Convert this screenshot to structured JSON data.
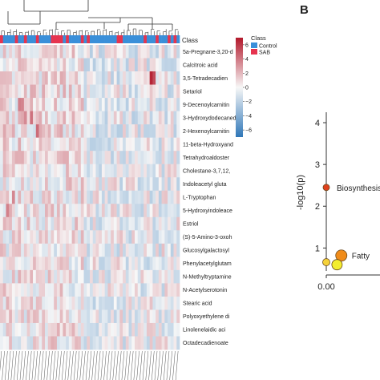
{
  "panel_b_letter": "B",
  "chart_data": [
    {
      "type": "heatmap",
      "metabolites": [
        "5a-Pregnane-3,20-d",
        "Calcitroic acid",
        "3,5-Tetradecadien",
        "Setariol",
        "9-Decenoylcarnitin",
        "3-Hydroxydodecaned",
        "2-Hexenoylcarnitin",
        "11-beta-Hydroxyand",
        "Tetrahydroaldoster",
        "Cholestane-3,7,12,",
        "Indoleacetyl gluta",
        "L-Tryptophan",
        "5-Hydroxyindoleace",
        "Estriol",
        "(S)-5-Amino-3-oxoh",
        "Glucosylgalactosyl",
        "Phenylacetylglutam",
        "N-Methyltryptamine",
        "N-Acetylserotonin",
        "Stearic acid",
        "Polyoxyethylene di",
        "Linolenelaidic aci",
        "Octadecadienoate"
      ],
      "annotation_row_label": "Class",
      "colorbar": {
        "ticks": [
          6,
          4,
          2,
          0,
          -2,
          -4,
          -6
        ],
        "range": [
          -7,
          7
        ],
        "colors": {
          "low": "#2f77b8",
          "mid": "#f7f7f7",
          "high": "#b2182b"
        }
      },
      "legend": {
        "title": "Class",
        "entries": [
          {
            "name": "Control",
            "color": "#3a8fd9"
          },
          {
            "name": "SAB",
            "color": "#e6344f"
          }
        ]
      }
    },
    {
      "type": "scatter",
      "ylabel": "-log10(p)",
      "y_ticks": [
        1,
        2,
        3,
        4
      ],
      "ylim": [
        0.45,
        4.25
      ],
      "x_ticks": [
        "0.00"
      ],
      "xlim": [
        0.0,
        0.1
      ],
      "points": [
        {
          "x": 0.0,
          "y": 2.45,
          "color": "#e0401c",
          "label": "Biosynthesis"
        },
        {
          "x": 0.028,
          "y": 0.82,
          "color": "#f08c1a",
          "label": "Fatty"
        },
        {
          "x": 0.0,
          "y": 0.66,
          "color": "#f5d23a",
          "label": ""
        },
        {
          "x": 0.02,
          "y": 0.6,
          "color": "#f3ed2f",
          "label": ""
        }
      ]
    }
  ]
}
